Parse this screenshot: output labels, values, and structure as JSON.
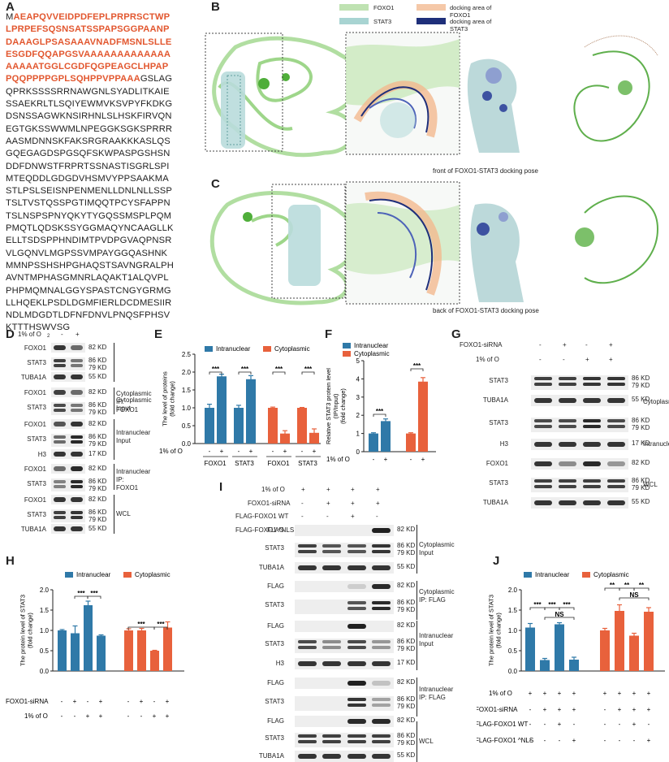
{
  "panel_labels": {
    "A": "A",
    "B": "B",
    "C": "C",
    "D": "D",
    "E": "E",
    "F": "F",
    "G": "G",
    "H": "H",
    "I": "I",
    "J": "J"
  },
  "sequence": {
    "first_letter": "M",
    "highlighted": [
      "AEAPQVVEIDPDFEPLPRPRSCTWP",
      "LPRPEFSQSNSATSSPAPSGGPAANP",
      "DAAAGLPSASAAAVNADFMSNLSLLE",
      "ESGDFQQAPGSVAAAAAAAAAAAAA",
      "AAAAATGGLCGDFQGPEAGCLHPAP"
    ],
    "last_hl": "PQQPPPPGPLSQHPPVPPAAA",
    "last_tail": "GSLAG",
    "rest": [
      "QPRKSSSSRRNAWGNLSYADLITKAIE",
      "SSAEKRLTLSQIYEWMVKSVPYFKDKG",
      "DSNSSAGWKNSIRHNLSLHSKFIRVQN",
      "EGTGKSSWWMLNPEGGKSGKSPRRR",
      "AASMDNNSKFAKSRGRAAKKKASLQS",
      "GQEGAGDSPGSQFSKWPASPGSHSN",
      "DDFDNWSTFRPRTSSNASTISGRLSPI",
      "MTEQDDLGDGDVHSMVYPPSAAKMA",
      "STLPSLSEISNPENMENLLDNLNLLSSP",
      "TSLTVSTQSSPGTIMQQTPCYSFAPPN",
      "TSLNSPSPNYQKYTYGQSSMSPLPQM",
      "PMQTLQDSKSSYGGMAQYNCAAGLLK",
      "ELLTSDSPPHNDIMTPVDPGVAQPNSR",
      "VLGQNVLMGPSSVMPAYGGQASHNK",
      "MMNPSSHSHPGHAQSTSAVNGRALPH",
      "AVNTMPHASGMNRLAQAKT1ALQVPL",
      "PHPMQMNALGGYSPASTCNGYGRMG",
      "LLHQEKLPSDLDGMFIERLDCDMESIIR",
      "NDLMDGDTLDFNFDNVLPNQSFPHSV",
      "KTTTHSWVSG"
    ]
  },
  "panel_b": {
    "legend": [
      "FOXO1",
      "docking area of FOXO1",
      "STAT3",
      "docking area of STAT3"
    ],
    "caption": "front of FOXO1-STAT3 docking pose"
  },
  "panel_c": {
    "caption": "back of FOXO1-STAT3 docking pose"
  },
  "panel_d": {
    "condition": "1% of O",
    "sub": "2",
    "minus": "-",
    "plus": "+",
    "rows": [
      "FOXO1",
      "STAT3",
      "TUBA1A",
      "FOXO1",
      "STAT3",
      "FOXO1",
      "STAT3",
      "H3",
      "FOXO1",
      "STAT3",
      "FOXO1",
      "STAT3",
      "TUBA1A"
    ],
    "kd": [
      "82 KD",
      "86 KD",
      "79 KD",
      "55 KD",
      "82 KD",
      "86 KD",
      "79 KD",
      "82 KD",
      "86 KD",
      "79 KD",
      "17 KD",
      "82 KD",
      "86 KD",
      "79 KD",
      "82 KD",
      "86 KD",
      "79 KD",
      "55 KD"
    ],
    "groups": [
      "Cytoplasmic",
      "Input",
      "Cytoplasmic",
      "IP: FOXO1",
      "Intranuclear",
      "Input",
      "Intranuclear",
      "IP: FOXO1",
      "WCL"
    ]
  },
  "panel_e": {
    "chart_data": {
      "type": "bar",
      "ylabel": "The level of proteins\n(fold change)",
      "ylim": [
        0,
        2.5
      ],
      "yticks": [
        "0.0",
        "0.5",
        "1.0",
        "1.5",
        "2.0",
        "2.5"
      ],
      "legend": [
        "Intranuclear",
        "Cytoplasmic"
      ],
      "colors": [
        "#2f79a8",
        "#e8613c"
      ],
      "categories": [
        "FOXO1",
        "STAT3",
        "FOXO1",
        "STAT3"
      ],
      "values": [
        [
          1.0,
          1.88
        ],
        [
          1.0,
          1.8
        ],
        [
          1.0,
          0.28
        ],
        [
          1.0,
          0.3
        ]
      ],
      "errors": [
        [
          0.1,
          0.06
        ],
        [
          0.07,
          0.1
        ],
        [
          0.02,
          0.08
        ],
        [
          0.01,
          0.11
        ]
      ],
      "series_of_group": [
        0,
        0,
        1,
        1
      ],
      "sig": "***",
      "xrow_label": "1% of O",
      "x_signs": [
        "-",
        "+",
        "-",
        "+",
        "-",
        "+",
        "-",
        "+"
      ]
    }
  },
  "panel_f": {
    "chart_data": {
      "type": "bar",
      "ylabel": "Relative STAT3 protein level\n(IP/Input)\n(fold change)",
      "ylim": [
        0,
        5
      ],
      "yticks": [
        "0",
        "1",
        "2",
        "3",
        "4",
        "5"
      ],
      "legend": [
        "Intranuclear",
        "Cytoplasmic"
      ],
      "colors": [
        "#2f79a8",
        "#e8613c"
      ],
      "values": [
        [
          1.0,
          1.68
        ],
        [
          1.0,
          3.85
        ]
      ],
      "errors": [
        [
          0.04,
          0.12
        ],
        [
          0.04,
          0.22
        ]
      ],
      "sig": "***",
      "xrow_label": "1% of O",
      "x_signs": [
        "-",
        "+",
        "-",
        "+"
      ]
    }
  },
  "panel_g": {
    "rowlabels": [
      "FOXO1-siRNA",
      "1% of O"
    ],
    "signs_row1": [
      "-",
      "+",
      "-",
      "+"
    ],
    "signs_row2": [
      "-",
      "-",
      "+",
      "+"
    ],
    "rows": [
      "STAT3",
      "TUBA1A",
      "STAT3",
      "H3",
      "FOXO1",
      "STAT3",
      "TUBA1A"
    ],
    "kd": [
      "86 KD",
      "79 KD",
      "55 KD",
      "86 KD",
      "79 KD",
      "17 KD",
      "82 KD",
      "86 KD",
      "79 KD",
      "55 KD"
    ],
    "groups": [
      "Cytoplasmic",
      "Intranuclear",
      "WCL"
    ]
  },
  "panel_h": {
    "chart_data": {
      "type": "bar",
      "ylabel": "The protein level of STAT3\n(fold change)",
      "ylim": [
        0,
        2.0
      ],
      "yticks": [
        "0.0",
        "0.5",
        "1.0",
        "1.5",
        "2.0"
      ],
      "legend": [
        "Intranuclear",
        "Cytoplasmic"
      ],
      "colors": [
        "#2f79a8",
        "#e8613c"
      ],
      "series": [
        {
          "name": "Intranuclear",
          "values": [
            1.0,
            0.93,
            1.62,
            0.87
          ],
          "errors": [
            0.02,
            0.18,
            0.1,
            0.02
          ]
        },
        {
          "name": "Cytoplasmic",
          "values": [
            1.0,
            1.0,
            0.5,
            1.07
          ],
          "errors": [
            0.04,
            0.05,
            0.01,
            0.14
          ]
        }
      ],
      "sig": "***",
      "row1_label": "FOXO1-siRNA",
      "row1": [
        "-",
        "+",
        "-",
        "+",
        "-",
        "+",
        "-",
        "+"
      ],
      "row2_label": "1% of O",
      "row2": [
        "-",
        "-",
        "+",
        "+",
        "-",
        "-",
        "+",
        "+"
      ]
    }
  },
  "panel_i": {
    "rowlabels": [
      "1% of O",
      "FOXO1-siRNA",
      "FLAG-FOXO1 WT",
      "FLAG-FOXO1 ^NLS"
    ],
    "signs": [
      [
        "+",
        "+",
        "+",
        "+"
      ],
      [
        "-",
        "+",
        "+",
        "+"
      ],
      [
        "-",
        "-",
        "+",
        "-"
      ],
      [
        "-",
        "-",
        "-",
        "+"
      ]
    ],
    "rows": [
      "FLAG",
      "STAT3",
      "TUBA1A",
      "FLAG",
      "STAT3",
      "FLAG",
      "STAT3",
      "H3",
      "FLAG",
      "STAT3",
      "FLAG",
      "STAT3",
      "TUBA1A"
    ],
    "kd": [
      "82 KD",
      "86 KD",
      "79 KD",
      "55 KD",
      "82 KD",
      "86 KD",
      "79 KD",
      "82 KD",
      "86 KD",
      "79 KD",
      "17 KD",
      "82 KD",
      "86 KD",
      "79 KD",
      "82 KD",
      "86 KD",
      "79 KD",
      "55 KD"
    ],
    "groups": [
      "Cytoplasmic",
      "Input",
      "Cytoplasmic",
      "IP: FLAG",
      "Intranuclear",
      "Input",
      "Intranuclear",
      "IP: FLAG",
      "WCL"
    ]
  },
  "panel_j": {
    "chart_data": {
      "type": "bar",
      "ylabel": "The protein level of STAT3\n(fold change)",
      "ylim": [
        0,
        2.0
      ],
      "yticks": [
        "0.0",
        "0.5",
        "1.0",
        "1.5",
        "2.0"
      ],
      "legend": [
        "Intranuclear",
        "Cytoplasmic"
      ],
      "colors": [
        "#2f79a8",
        "#e8613c"
      ],
      "series": [
        {
          "name": "Intranuclear",
          "values": [
            1.07,
            0.27,
            1.15,
            0.28
          ],
          "errors": [
            0.1,
            0.04,
            0.04,
            0.06
          ]
        },
        {
          "name": "Cytoplasmic",
          "values": [
            1.0,
            1.48,
            0.87,
            1.46
          ],
          "errors": [
            0.05,
            0.15,
            0.06,
            0.1
          ]
        }
      ],
      "sig": "***",
      "sig2": "**",
      "ns": "NS",
      "rows_labels": [
        "1% of O",
        "FOXO1-siRNA",
        "FLAG-FOXO1 WT",
        "FLAG-FOXO1 ^NLS"
      ],
      "rows": [
        [
          "+",
          "+",
          "+",
          "+",
          "+",
          "+",
          "+",
          "+"
        ],
        [
          "-",
          "+",
          "+",
          "+",
          "-",
          "+",
          "+",
          "+"
        ],
        [
          "-",
          "-",
          "+",
          "-",
          "-",
          "-",
          "+",
          "-"
        ],
        [
          "-",
          "-",
          "-",
          "+",
          "-",
          "-",
          "-",
          "+"
        ]
      ]
    }
  }
}
